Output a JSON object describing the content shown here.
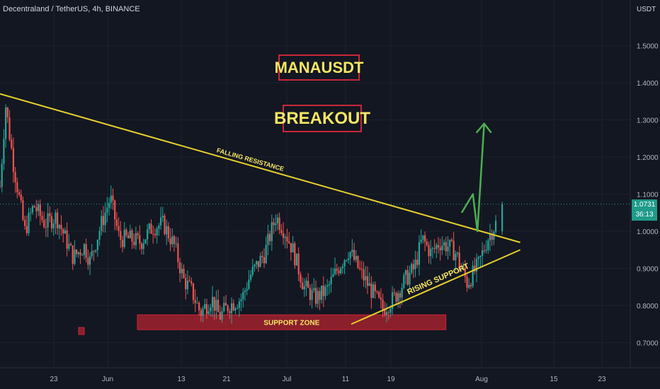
{
  "header": {
    "title": "Decentraland / TetherUS, 4h, BINANCE",
    "unit": "USDT"
  },
  "annotations": {
    "symbol_badge": "MANAUSDT",
    "signal_badge": "BREAKOUT",
    "falling_resistance": "FALLING RESISTANCE",
    "rising_support": "RISING SUPPORT",
    "support_zone": "SUPPORT ZONE"
  },
  "price_tag": {
    "price": "1.0731",
    "countdown": "36:13"
  },
  "colors": {
    "background": "#131722",
    "up": "#26a69a",
    "down": "#ef5350",
    "trendline": "#e6cf2e",
    "zone": "#8b1f2b",
    "arrow": "#4caf50",
    "badge_border": "#c9273a",
    "badge_text": "#f5e663"
  },
  "chart_data": {
    "type": "candlestick",
    "symbol": "MANAUSDT",
    "timeframe": "4h",
    "exchange": "BINANCE",
    "y_ticks": [
      "1.5000",
      "1.4000",
      "1.3000",
      "1.2000",
      "1.1000",
      "1.0000",
      "0.9000",
      "0.8000",
      "0.7000"
    ],
    "x_ticks": [
      "23",
      "Jun",
      "13",
      "21",
      "Jul",
      "11",
      "19",
      "Aug",
      "15",
      "23"
    ],
    "ylim": [
      0.67,
      1.6
    ],
    "last_price": 1.0731,
    "price_path": [
      [
        0.0,
        1.12
      ],
      [
        0.5,
        1.34
      ],
      [
        1.2,
        1.18
      ],
      [
        2.2,
        1.0
      ],
      [
        3.0,
        1.07
      ],
      [
        4.0,
        1.02
      ],
      [
        5.0,
        1.04
      ],
      [
        6.5,
        0.93
      ],
      [
        7.5,
        0.96
      ],
      [
        8.0,
        0.92
      ],
      [
        9.0,
        1.02
      ],
      [
        9.8,
        1.09
      ],
      [
        10.6,
        0.98
      ],
      [
        11.5,
        0.98
      ],
      [
        12.5,
        0.97
      ],
      [
        13.5,
        1.01
      ],
      [
        14.5,
        1.02
      ],
      [
        15.5,
        0.96
      ],
      [
        16.3,
        0.87
      ],
      [
        17.0,
        0.84
      ],
      [
        17.8,
        0.78
      ],
      [
        18.8,
        0.82
      ],
      [
        19.5,
        0.77
      ],
      [
        20.3,
        0.8
      ],
      [
        21.5,
        0.82
      ],
      [
        22.2,
        0.88
      ],
      [
        23.5,
        0.94
      ],
      [
        24.5,
        1.04
      ],
      [
        25.3,
        1.0
      ],
      [
        26.0,
        0.95
      ],
      [
        27.0,
        0.85
      ],
      [
        28.0,
        0.82
      ],
      [
        29.0,
        0.84
      ],
      [
        30.0,
        0.9
      ],
      [
        31.0,
        0.95
      ],
      [
        32.0,
        0.89
      ],
      [
        33.0,
        0.84
      ],
      [
        34.0,
        0.79
      ],
      [
        35.0,
        0.82
      ],
      [
        36.0,
        0.87
      ],
      [
        36.8,
        0.9
      ],
      [
        37.5,
        0.98
      ],
      [
        38.3,
        0.94
      ],
      [
        39.0,
        0.97
      ],
      [
        39.8,
        0.96
      ],
      [
        40.5,
        0.94
      ],
      [
        41.5,
        0.86
      ],
      [
        42.5,
        0.91
      ],
      [
        43.3,
        0.98
      ],
      [
        44.2,
        1.03
      ]
    ],
    "lines": {
      "falling_resistance": [
        [
          0,
          1.37
        ],
        [
          46.2,
          0.97
        ]
      ],
      "rising_support": [
        [
          31.2,
          0.75
        ],
        [
          46.2,
          0.95
        ]
      ],
      "support_zone": [
        [
          12.2,
          0.775
        ],
        [
          39.6,
          0.735
        ]
      ],
      "projection_arrow": [
        [
          41.0,
          1.05
        ],
        [
          42.0,
          1.1
        ],
        [
          42.4,
          1.0
        ],
        [
          43.0,
          1.29
        ]
      ]
    }
  }
}
